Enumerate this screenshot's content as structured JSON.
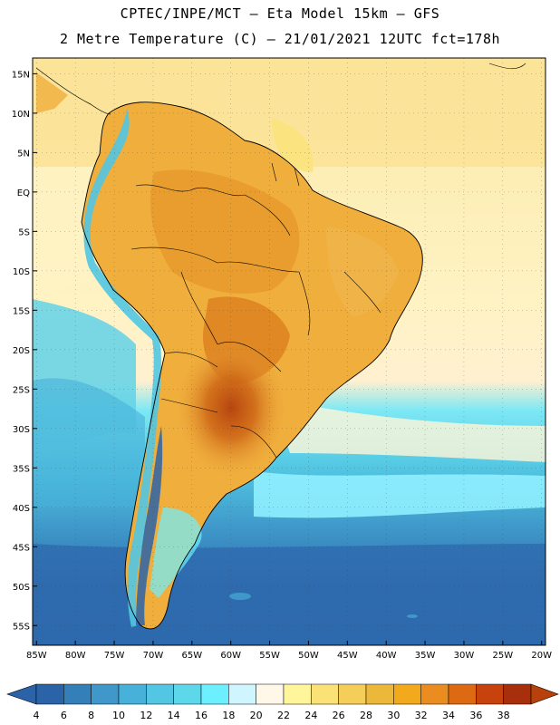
{
  "header": {
    "line1": "CPTEC/INPE/MCT –  Eta Model 15km – GFS",
    "line2": "2 Metre Temperature (C) – 21/01/2021 12UTC fct=178h"
  },
  "map": {
    "lat_labels": [
      "15N",
      "10N",
      "5N",
      "EQ",
      "5S",
      "10S",
      "15S",
      "20S",
      "25S",
      "30S",
      "35S",
      "40S",
      "45S",
      "50S",
      "55S"
    ],
    "lon_labels": [
      "85W",
      "80W",
      "75W",
      "70W",
      "65W",
      "60W",
      "55W",
      "50W",
      "45W",
      "40W",
      "35W",
      "30W",
      "25W",
      "20W"
    ],
    "lat_values": [
      15,
      10,
      5,
      0,
      -5,
      -10,
      -15,
      -20,
      -25,
      -30,
      -35,
      -40,
      -45,
      -50,
      -55
    ],
    "lon_values": [
      -85,
      -80,
      -75,
      -70,
      -65,
      -60,
      -55,
      -50,
      -45,
      -40,
      -35,
      -30,
      -25,
      -20
    ],
    "extent": {
      "lon_min": -85.5,
      "lon_max": -19.5,
      "lat_min": -57.5,
      "lat_max": 17
    }
  },
  "colorbar": {
    "labels": [
      "4",
      "6",
      "8",
      "10",
      "12",
      "14",
      "16",
      "18",
      "20",
      "22",
      "24",
      "26",
      "28",
      "30",
      "32",
      "34",
      "36",
      "38"
    ],
    "colors": [
      "#2b63a8",
      "#357fb8",
      "#3f98c9",
      "#48b1d9",
      "#52c6e2",
      "#5cd8ea",
      "#6cefff",
      "#cff5ff",
      "#fff8e8",
      "#fff59a",
      "#fbe276",
      "#f5cd59",
      "#ecb839",
      "#f3a91c",
      "#ea8c1f",
      "#dd6a12",
      "#c7420c",
      "#a82f0c"
    ],
    "low_color": "#2b63a8",
    "high_color": "#b8410b"
  }
}
